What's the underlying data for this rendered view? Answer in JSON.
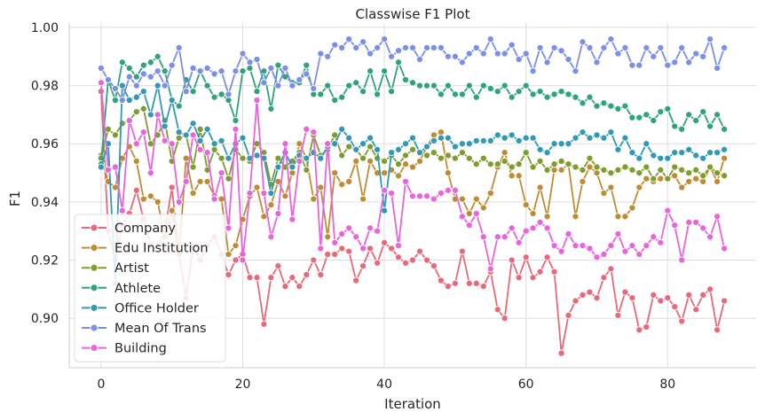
{
  "chart_data": {
    "type": "line",
    "title": "Classwise F1 Plot",
    "xlabel": "Iteration",
    "ylabel": "F1",
    "xlim": [
      -4.5,
      92.5
    ],
    "ylim": [
      0.883,
      1.0015
    ],
    "xticks": [
      0,
      20,
      40,
      60,
      80
    ],
    "xtick_labels": [
      "0",
      "20",
      "40",
      "60",
      "80"
    ],
    "yticks": [
      0.9,
      0.92,
      0.94,
      0.96,
      0.98,
      1.0
    ],
    "ytick_labels": [
      "0.90",
      "0.92",
      "0.94",
      "0.96",
      "0.98",
      "1.00"
    ],
    "grid": true,
    "legend_position": "lower-left",
    "x": [
      0,
      1,
      2,
      3,
      4,
      5,
      6,
      7,
      8,
      9,
      10,
      11,
      12,
      13,
      14,
      15,
      16,
      17,
      18,
      19,
      20,
      21,
      22,
      23,
      24,
      25,
      26,
      27,
      28,
      29,
      30,
      31,
      32,
      33,
      34,
      35,
      36,
      37,
      38,
      39,
      40,
      41,
      42,
      43,
      44,
      45,
      46,
      47,
      48,
      49,
      50,
      51,
      52,
      53,
      54,
      55,
      56,
      57,
      58,
      59,
      60,
      61,
      62,
      63,
      64,
      65,
      66,
      67,
      68,
      69,
      70,
      71,
      72,
      73,
      74,
      75,
      76,
      77,
      78,
      79,
      80,
      81,
      82,
      83,
      84,
      85,
      86,
      87,
      88
    ],
    "series": [
      {
        "name": "Company",
        "color": "#e8697a",
        "values": [
          0.978,
          0.93,
          0.92,
          0.932,
          0.936,
          0.944,
          0.934,
          0.925,
          0.925,
          0.93,
          0.945,
          0.922,
          0.907,
          0.925,
          0.92,
          0.925,
          0.928,
          0.922,
          0.915,
          0.92,
          0.922,
          0.914,
          0.914,
          0.898,
          0.914,
          0.918,
          0.911,
          0.914,
          0.911,
          0.915,
          0.92,
          0.915,
          0.922,
          0.922,
          0.924,
          0.923,
          0.913,
          0.918,
          0.924,
          0.919,
          0.926,
          0.924,
          0.921,
          0.919,
          0.92,
          0.923,
          0.92,
          0.918,
          0.913,
          0.911,
          0.912,
          0.923,
          0.912,
          0.912,
          0.911,
          0.916,
          0.903,
          0.9,
          0.92,
          0.914,
          0.921,
          0.914,
          0.916,
          0.921,
          0.916,
          0.888,
          0.901,
          0.906,
          0.908,
          0.909,
          0.907,
          0.914,
          0.917,
          0.901,
          0.909,
          0.907,
          0.896,
          0.897,
          0.908,
          0.906,
          0.907,
          0.904,
          0.899,
          0.908,
          0.903,
          0.908,
          0.91,
          0.896,
          0.906
        ]
      },
      {
        "name": "Edu Institution",
        "color": "#bd8d35",
        "values": [
          0.956,
          0.947,
          0.945,
          0.955,
          0.959,
          0.954,
          0.941,
          0.942,
          0.94,
          0.928,
          0.937,
          0.922,
          0.955,
          0.943,
          0.947,
          0.947,
          0.942,
          0.941,
          0.922,
          0.925,
          0.934,
          0.942,
          0.945,
          0.935,
          0.939,
          0.947,
          0.942,
          0.95,
          0.96,
          0.955,
          0.941,
          0.945,
          0.928,
          0.95,
          0.946,
          0.947,
          0.954,
          0.941,
          0.954,
          0.95,
          0.95,
          0.951,
          0.949,
          0.953,
          0.952,
          0.954,
          0.959,
          0.963,
          0.964,
          0.95,
          0.941,
          0.941,
          0.936,
          0.941,
          0.938,
          0.943,
          0.952,
          0.957,
          0.949,
          0.949,
          0.939,
          0.936,
          0.945,
          0.935,
          0.951,
          0.951,
          0.953,
          0.935,
          0.947,
          0.952,
          0.95,
          0.943,
          0.945,
          0.935,
          0.935,
          0.938,
          0.945,
          0.948,
          0.947,
          0.948,
          0.948,
          0.949,
          0.945,
          0.947,
          0.948,
          0.947,
          0.952,
          0.947,
          0.955
        ]
      },
      {
        "name": "Artist",
        "color": "#7f9c2e",
        "values": [
          0.955,
          0.965,
          0.963,
          0.967,
          0.968,
          0.971,
          0.972,
          0.96,
          0.963,
          0.968,
          0.954,
          0.962,
          0.963,
          0.952,
          0.965,
          0.951,
          0.958,
          0.955,
          0.948,
          0.958,
          0.955,
          0.954,
          0.96,
          0.957,
          0.946,
          0.955,
          0.952,
          0.954,
          0.957,
          0.951,
          0.963,
          0.956,
          0.958,
          0.963,
          0.956,
          0.959,
          0.958,
          0.955,
          0.959,
          0.955,
          0.954,
          0.956,
          0.953,
          0.956,
          0.958,
          0.957,
          0.956,
          0.957,
          0.955,
          0.956,
          0.955,
          0.957,
          0.955,
          0.953,
          0.955,
          0.953,
          0.953,
          0.954,
          0.952,
          0.953,
          0.957,
          0.952,
          0.954,
          0.951,
          0.953,
          0.954,
          0.953,
          0.952,
          0.951,
          0.955,
          0.952,
          0.951,
          0.95,
          0.951,
          0.952,
          0.951,
          0.95,
          0.952,
          0.948,
          0.951,
          0.948,
          0.952,
          0.951,
          0.95,
          0.951,
          0.949,
          0.952,
          0.95,
          0.949
        ]
      },
      {
        "name": "Athlete",
        "color": "#30a37b",
        "values": [
          0.953,
          0.982,
          0.975,
          0.988,
          0.986,
          0.983,
          0.987,
          0.988,
          0.99,
          0.985,
          0.975,
          0.973,
          0.982,
          0.978,
          0.985,
          0.98,
          0.976,
          0.977,
          0.975,
          0.968,
          0.985,
          0.986,
          0.978,
          0.985,
          0.972,
          0.987,
          0.983,
          0.981,
          0.981,
          0.987,
          0.977,
          0.977,
          0.98,
          0.975,
          0.976,
          0.98,
          0.981,
          0.978,
          0.985,
          0.977,
          0.985,
          0.978,
          0.988,
          0.982,
          0.981,
          0.98,
          0.98,
          0.98,
          0.977,
          0.98,
          0.977,
          0.977,
          0.98,
          0.976,
          0.98,
          0.979,
          0.978,
          0.98,
          0.976,
          0.978,
          0.98,
          0.977,
          0.978,
          0.976,
          0.977,
          0.978,
          0.977,
          0.976,
          0.974,
          0.976,
          0.973,
          0.974,
          0.973,
          0.972,
          0.973,
          0.969,
          0.969,
          0.97,
          0.968,
          0.971,
          0.972,
          0.966,
          0.965,
          0.97,
          0.968,
          0.971,
          0.966,
          0.97,
          0.965
        ]
      },
      {
        "name": "Office Holder",
        "color": "#3199b4",
        "values": [
          0.952,
          0.96,
          0.912,
          0.98,
          0.975,
          0.976,
          0.978,
          0.97,
          0.98,
          0.966,
          0.975,
          0.964,
          0.963,
          0.967,
          0.961,
          0.965,
          0.96,
          0.961,
          0.955,
          0.96,
          0.962,
          0.955,
          0.956,
          0.955,
          0.943,
          0.952,
          0.957,
          0.952,
          0.956,
          0.955,
          0.957,
          0.955,
          0.959,
          0.96,
          0.965,
          0.962,
          0.958,
          0.96,
          0.962,
          0.958,
          0.937,
          0.957,
          0.958,
          0.96,
          0.962,
          0.957,
          0.959,
          0.961,
          0.962,
          0.962,
          0.959,
          0.96,
          0.96,
          0.961,
          0.961,
          0.961,
          0.963,
          0.962,
          0.963,
          0.961,
          0.962,
          0.962,
          0.958,
          0.957,
          0.96,
          0.96,
          0.96,
          0.962,
          0.964,
          0.962,
          0.963,
          0.962,
          0.964,
          0.958,
          0.962,
          0.957,
          0.955,
          0.96,
          0.956,
          0.955,
          0.955,
          0.957,
          0.957,
          0.958,
          0.956,
          0.955,
          0.957,
          0.957,
          0.958
        ]
      },
      {
        "name": "Mean Of Trans",
        "color": "#7b8fe8",
        "values": [
          0.986,
          0.982,
          0.979,
          0.975,
          0.983,
          0.98,
          0.984,
          0.983,
          0.985,
          0.98,
          0.987,
          0.993,
          0.978,
          0.986,
          0.985,
          0.986,
          0.984,
          0.985,
          0.977,
          0.985,
          0.991,
          0.988,
          0.989,
          0.981,
          0.986,
          0.98,
          0.986,
          0.98,
          0.982,
          0.984,
          0.979,
          0.991,
          0.99,
          0.994,
          0.993,
          0.996,
          0.993,
          0.995,
          0.991,
          0.993,
          0.996,
          0.99,
          0.992,
          0.993,
          0.993,
          0.989,
          0.993,
          0.993,
          0.993,
          0.99,
          0.99,
          0.988,
          0.991,
          0.993,
          0.991,
          0.996,
          0.991,
          0.991,
          0.994,
          0.989,
          0.991,
          0.985,
          0.993,
          0.988,
          0.993,
          0.992,
          0.989,
          0.985,
          0.995,
          0.993,
          0.988,
          0.993,
          0.996,
          0.991,
          0.993,
          0.987,
          0.987,
          0.993,
          0.99,
          0.993,
          0.987,
          0.988,
          0.993,
          0.988,
          0.991,
          0.99,
          0.996,
          0.986,
          0.993
        ]
      },
      {
        "name": "Building",
        "color": "#e865dd",
        "values": [
          0.981,
          0.951,
          0.952,
          0.937,
          0.968,
          0.96,
          0.964,
          0.95,
          0.97,
          0.961,
          0.96,
          0.94,
          0.947,
          0.963,
          0.958,
          0.957,
          0.941,
          0.95,
          0.931,
          0.965,
          0.92,
          0.943,
          0.975,
          0.943,
          0.928,
          0.936,
          0.96,
          0.934,
          0.954,
          0.965,
          0.964,
          0.924,
          0.96,
          0.926,
          0.929,
          0.931,
          0.928,
          0.924,
          0.931,
          0.93,
          0.944,
          0.943,
          0.925,
          0.947,
          0.942,
          0.942,
          0.942,
          0.941,
          0.943,
          0.944,
          0.944,
          0.935,
          0.932,
          0.936,
          0.928,
          0.917,
          0.928,
          0.928,
          0.931,
          0.926,
          0.93,
          0.931,
          0.933,
          0.931,
          0.925,
          0.923,
          0.929,
          0.925,
          0.925,
          0.924,
          0.921,
          0.922,
          0.925,
          0.929,
          0.923,
          0.925,
          0.922,
          0.925,
          0.928,
          0.926,
          0.937,
          0.932,
          0.92,
          0.933,
          0.933,
          0.931,
          0.928,
          0.935,
          0.924
        ]
      }
    ]
  }
}
